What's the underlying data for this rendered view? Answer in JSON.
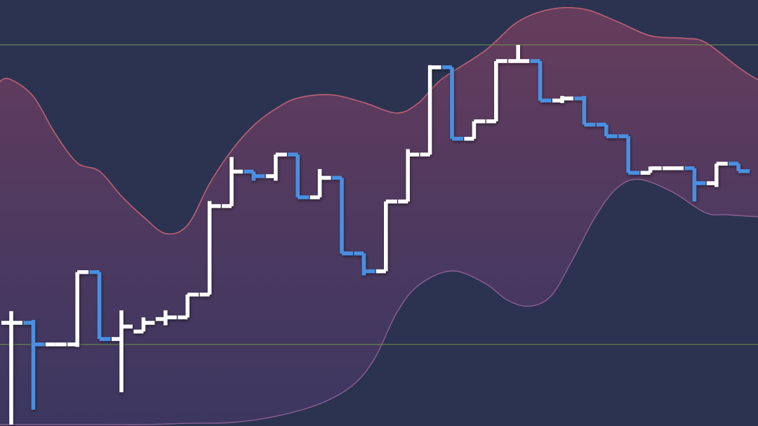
{
  "colors": {
    "background": "#2c3350",
    "up": "#ffffff",
    "down": "#4a90e2",
    "band_fill_top": "#7a4060",
    "band_fill_bottom": "#4a3a6e",
    "band_stroke_upper": "#d06a7a",
    "band_stroke_lower": "#a06aa0",
    "reference_line": "#6b8a4e"
  },
  "chart_data": {
    "type": "ohlc",
    "title": "",
    "xlabel": "",
    "ylabel": "",
    "axes_visible": false,
    "grid": false,
    "legend": "none",
    "ylim": [
      0,
      100
    ],
    "xlim": [
      0,
      36
    ],
    "reference_lines": [
      91.4,
      19.3
    ],
    "bars": [
      {
        "x": 1,
        "open": 24.5,
        "high": 27.3,
        "low": 0.0,
        "close": 24.5
      },
      {
        "x": 2,
        "open": 24.5,
        "high": 25.2,
        "low": 3.6,
        "close": 19.3
      },
      {
        "x": 3,
        "open": 19.3,
        "high": 19.3,
        "low": 19.3,
        "close": 19.3
      },
      {
        "x": 4,
        "open": 19.3,
        "high": 36.7,
        "low": 18.7,
        "close": 36.7
      },
      {
        "x": 5,
        "open": 36.7,
        "high": 36.7,
        "low": 20.6,
        "close": 20.6
      },
      {
        "x": 6,
        "open": 20.6,
        "high": 27.5,
        "low": 7.8,
        "close": 23.6
      },
      {
        "x": 7,
        "open": 22.4,
        "high": 25.8,
        "low": 22.4,
        "close": 24.5
      },
      {
        "x": 8,
        "open": 25.4,
        "high": 27.5,
        "low": 23.9,
        "close": 25.8
      },
      {
        "x": 9,
        "open": 25.8,
        "high": 31.3,
        "low": 25.8,
        "close": 31.3
      },
      {
        "x": 10,
        "open": 31.3,
        "high": 53.8,
        "low": 31.3,
        "close": 52.6
      },
      {
        "x": 11,
        "open": 52.6,
        "high": 64.4,
        "low": 52.6,
        "close": 60.9
      },
      {
        "x": 12,
        "open": 60.9,
        "high": 60.9,
        "low": 58.7,
        "close": 59.8
      },
      {
        "x": 13,
        "open": 59.8,
        "high": 65.0,
        "low": 58.7,
        "close": 65.0
      },
      {
        "x": 14,
        "open": 65.0,
        "high": 65.0,
        "low": 54.7,
        "close": 54.7
      },
      {
        "x": 15,
        "open": 54.7,
        "high": 61.5,
        "low": 54.7,
        "close": 59.4
      },
      {
        "x": 16,
        "open": 59.4,
        "high": 59.4,
        "low": 41.2,
        "close": 41.2
      },
      {
        "x": 17,
        "open": 41.2,
        "high": 41.2,
        "low": 35.9,
        "close": 36.9
      },
      {
        "x": 18,
        "open": 36.9,
        "high": 53.7,
        "low": 36.9,
        "close": 53.7
      },
      {
        "x": 19,
        "open": 53.7,
        "high": 66.3,
        "low": 53.7,
        "close": 65.0
      },
      {
        "x": 20,
        "open": 65.0,
        "high": 86.5,
        "low": 65.0,
        "close": 86.0
      },
      {
        "x": 21,
        "open": 86.0,
        "high": 86.0,
        "low": 68.8,
        "close": 68.8
      },
      {
        "x": 22,
        "open": 68.8,
        "high": 73.0,
        "low": 68.8,
        "close": 73.0
      },
      {
        "x": 23,
        "open": 73.0,
        "high": 87.5,
        "low": 73.0,
        "close": 87.5
      },
      {
        "x": 24,
        "open": 87.5,
        "high": 91.4,
        "low": 87.5,
        "close": 87.5
      },
      {
        "x": 25,
        "open": 87.5,
        "high": 87.5,
        "low": 78.0,
        "close": 78.0
      },
      {
        "x": 26,
        "open": 78.0,
        "high": 79.1,
        "low": 77.4,
        "close": 78.5
      },
      {
        "x": 27,
        "open": 78.5,
        "high": 79.1,
        "low": 72.2,
        "close": 72.2
      },
      {
        "x": 28,
        "open": 72.2,
        "high": 72.2,
        "low": 69.4,
        "close": 69.4
      },
      {
        "x": 29,
        "open": 69.4,
        "high": 69.4,
        "low": 60.6,
        "close": 60.6
      },
      {
        "x": 30,
        "open": 60.6,
        "high": 62.1,
        "low": 60.6,
        "close": 61.7
      },
      {
        "x": 31,
        "open": 61.7,
        "high": 61.7,
        "low": 61.7,
        "close": 61.7
      },
      {
        "x": 32,
        "open": 61.7,
        "high": 61.7,
        "low": 53.7,
        "close": 58.1
      },
      {
        "x": 33,
        "open": 58.1,
        "high": 62.8,
        "low": 57.2,
        "close": 62.8
      },
      {
        "x": 34,
        "open": 62.8,
        "high": 62.8,
        "low": 61.0,
        "close": 61.0
      }
    ],
    "band_upper": [
      [
        0.0,
        78.0
      ],
      [
        0.5,
        82.6
      ],
      [
        1.0,
        83.0
      ],
      [
        2.0,
        79.0
      ],
      [
        3.0,
        70.0
      ],
      [
        4.0,
        63.0
      ],
      [
        5.0,
        61.0
      ],
      [
        6.0,
        55.0
      ],
      [
        7.0,
        50.0
      ],
      [
        8.0,
        46.0
      ],
      [
        9.0,
        48.0
      ],
      [
        10.0,
        58.0
      ],
      [
        11.0,
        66.0
      ],
      [
        12.0,
        72.0
      ],
      [
        13.0,
        76.0
      ],
      [
        14.0,
        78.6
      ],
      [
        15.5,
        79.4
      ],
      [
        17.0,
        77.5
      ],
      [
        18.5,
        75.0
      ],
      [
        19.5,
        77.5
      ],
      [
        20.5,
        83.0
      ],
      [
        22.5,
        90.0
      ],
      [
        24.0,
        97.0
      ],
      [
        25.5,
        100.0
      ],
      [
        27.0,
        100.0
      ],
      [
        28.5,
        97.0
      ],
      [
        30.0,
        93.6
      ],
      [
        31.5,
        93.0
      ],
      [
        32.5,
        92.0
      ],
      [
        34.0,
        86.0
      ],
      [
        35.0,
        82.8
      ],
      [
        36.0,
        82.0
      ]
    ],
    "band_lower": [
      [
        0.0,
        0.0
      ],
      [
        5.0,
        0.0
      ],
      [
        7.0,
        0.0
      ],
      [
        9.0,
        0.3
      ],
      [
        11.0,
        0.5
      ],
      [
        13.0,
        2.0
      ],
      [
        15.0,
        5.0
      ],
      [
        16.5,
        9.5
      ],
      [
        17.5,
        16.0
      ],
      [
        18.5,
        27.0
      ],
      [
        19.5,
        33.6
      ],
      [
        21.0,
        37.0
      ],
      [
        22.5,
        34.0
      ],
      [
        23.5,
        30.0
      ],
      [
        24.5,
        28.5
      ],
      [
        25.5,
        31.0
      ],
      [
        26.5,
        40.0
      ],
      [
        27.5,
        50.0
      ],
      [
        28.5,
        57.0
      ],
      [
        29.5,
        59.0
      ],
      [
        31.0,
        56.0
      ],
      [
        32.5,
        51.0
      ],
      [
        33.5,
        50.5
      ],
      [
        35.0,
        50.0
      ],
      [
        36.0,
        50.0
      ]
    ]
  }
}
